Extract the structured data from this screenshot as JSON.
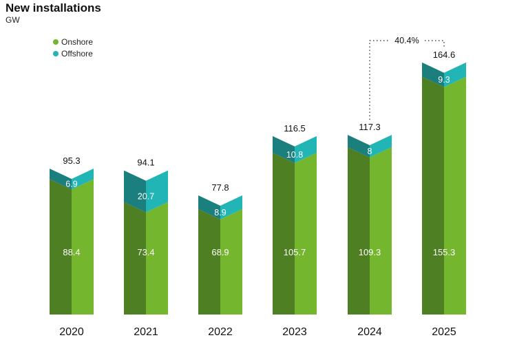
{
  "chart_data": {
    "type": "bar",
    "stacked": true,
    "title": "New installations",
    "unit": "GW",
    "categories": [
      "2020",
      "2021",
      "2022",
      "2023",
      "2024",
      "2025"
    ],
    "series": [
      {
        "name": "Onshore",
        "values": [
          88.4,
          73.4,
          68.9,
          105.7,
          109.3,
          155.3
        ]
      },
      {
        "name": "Offshore",
        "values": [
          6.9,
          20.7,
          8.9,
          10.8,
          8,
          9.3
        ]
      }
    ],
    "totals": [
      "95.3",
      "94.1",
      "77.8",
      "116.5",
      "117.3",
      "164.6"
    ],
    "onshore_labels": [
      "88.4",
      "73.4",
      "68.9",
      "105.7",
      "109.3",
      "155.3"
    ],
    "offshore_labels": [
      "6.9",
      "20.7",
      "8.9",
      "10.8",
      "8",
      "9.3"
    ],
    "annotation": {
      "text": "40.4%",
      "from": "2024",
      "to": "2025"
    },
    "legend_position": "top-left",
    "ylim": [
      0,
      165
    ]
  },
  "colors": {
    "onshore_front": "#74b72e",
    "onshore_side": "#4e7f22",
    "offshore_front": "#22b5b5",
    "offshore_side": "#1b7f7e"
  }
}
